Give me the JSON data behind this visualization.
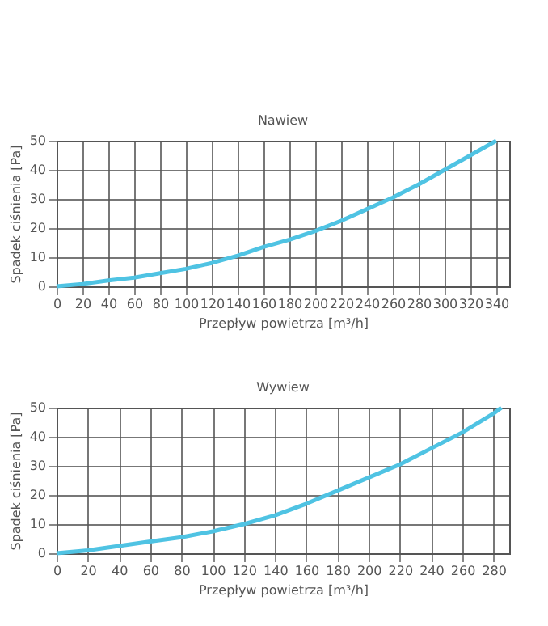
{
  "chart_data": [
    {
      "type": "line",
      "title": "Nawiew",
      "xlabel": "Przepływ powietrza [m³/h]",
      "ylabel": "Spadek ciśnienia [Pa]",
      "x": [
        0,
        20,
        40,
        60,
        80,
        100,
        120,
        140,
        160,
        180,
        200,
        220,
        240,
        260,
        280,
        300,
        320,
        340
      ],
      "series": [
        {
          "color": "#4fc3e3",
          "values": [
            0,
            0.8,
            2,
            3,
            4.5,
            6,
            8,
            10.5,
            13.5,
            16,
            19,
            22.5,
            26.5,
            30.5,
            35,
            40,
            45,
            50
          ]
        }
      ],
      "xlim": [
        0,
        350
      ],
      "xticks": [
        0,
        20,
        40,
        60,
        80,
        100,
        120,
        140,
        160,
        180,
        200,
        220,
        240,
        260,
        280,
        300,
        320,
        340
      ],
      "ylim": [
        0,
        50
      ],
      "yticks": [
        0,
        10,
        20,
        30,
        40,
        50
      ],
      "grid": true,
      "marker": "none",
      "line_style": "solid"
    },
    {
      "type": "line",
      "title": "Wywiew",
      "xlabel": "Przepływ powietrza [m³/h]",
      "ylabel": "Spadek ciśnienia [Pa]",
      "x": [
        0,
        20,
        40,
        60,
        80,
        100,
        120,
        140,
        160,
        180,
        200,
        220,
        240,
        260,
        280,
        285
      ],
      "series": [
        {
          "color": "#4fc3e3",
          "values": [
            0,
            1,
            2.5,
            4,
            5.5,
            7.5,
            10,
            13,
            17,
            21.5,
            26,
            30.5,
            36,
            41.5,
            48,
            50
          ]
        }
      ],
      "xlim": [
        0,
        290
      ],
      "xticks": [
        0,
        20,
        40,
        60,
        80,
        100,
        120,
        140,
        160,
        180,
        200,
        220,
        240,
        260,
        280
      ],
      "ylim": [
        0,
        50
      ],
      "yticks": [
        0,
        10,
        20,
        30,
        40,
        50
      ],
      "grid": true,
      "marker": "none",
      "line_style": "solid"
    }
  ]
}
